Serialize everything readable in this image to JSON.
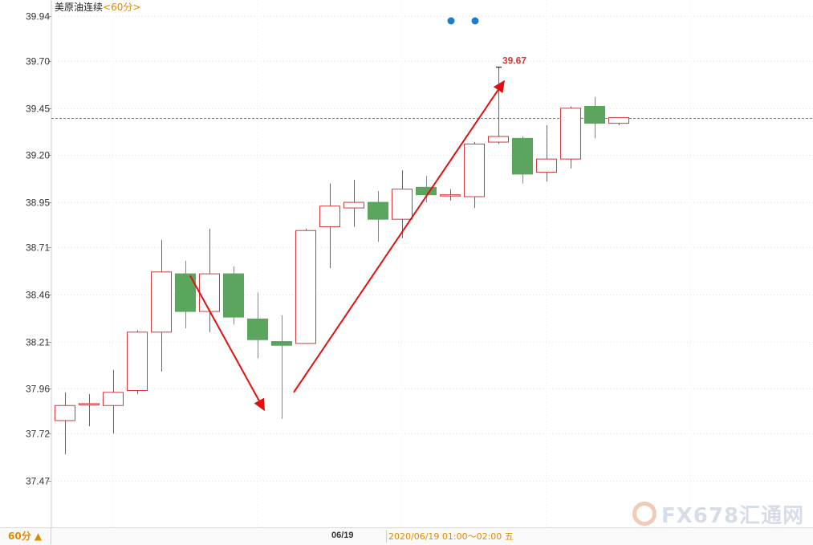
{
  "header": {
    "instrument": "美原油连续",
    "period": "<60分>"
  },
  "footer": {
    "period_button": "60分 ▲",
    "date": "06/19",
    "time_range": "2020/06/19 01:00～02:00 五"
  },
  "watermark": {
    "text": "FX678汇通网"
  },
  "colors": {
    "up": "#cf3b3b",
    "down": "#5ba55e",
    "reference_line": "#3a8fb3",
    "annotation_arrow": "#e01010",
    "marker_dot": "#1c7fc4"
  },
  "chart_data": {
    "type": "candlestick",
    "title": "美原油连续",
    "y_ticks": [
      "39.94",
      "39.70",
      "39.45",
      "39.20",
      "38.95",
      "38.71",
      "38.46",
      "38.21",
      "37.96",
      "37.72",
      "37.47"
    ],
    "ylim": [
      37.35,
      39.98
    ],
    "candles": [
      {
        "open": 37.79,
        "high": 37.94,
        "low": 37.61,
        "close": 37.87
      },
      {
        "open": 37.88,
        "high": 37.93,
        "low": 37.76,
        "close": 37.88
      },
      {
        "open": 37.87,
        "high": 38.06,
        "low": 37.72,
        "close": 37.94
      },
      {
        "open": 37.95,
        "high": 38.27,
        "low": 37.93,
        "close": 38.26
      },
      {
        "open": 38.26,
        "high": 38.75,
        "low": 38.05,
        "close": 38.58
      },
      {
        "open": 38.57,
        "high": 38.64,
        "low": 38.28,
        "close": 38.37
      },
      {
        "open": 38.37,
        "high": 38.81,
        "low": 38.26,
        "close": 38.57
      },
      {
        "open": 38.57,
        "high": 38.61,
        "low": 38.3,
        "close": 38.34
      },
      {
        "open": 38.33,
        "high": 38.47,
        "low": 38.12,
        "close": 38.22
      },
      {
        "open": 38.21,
        "high": 38.35,
        "low": 37.8,
        "close": 38.19
      },
      {
        "open": 38.2,
        "high": 38.81,
        "low": 38.2,
        "close": 38.8
      },
      {
        "open": 38.82,
        "high": 39.05,
        "low": 38.6,
        "close": 38.93
      },
      {
        "open": 38.92,
        "high": 39.07,
        "low": 38.82,
        "close": 38.95
      },
      {
        "open": 38.95,
        "high": 39.01,
        "low": 38.74,
        "close": 38.86
      },
      {
        "open": 38.86,
        "high": 39.12,
        "low": 38.76,
        "close": 39.02
      },
      {
        "open": 39.03,
        "high": 39.09,
        "low": 38.95,
        "close": 38.99
      },
      {
        "open": 38.99,
        "high": 39.02,
        "low": 38.96,
        "close": 38.99
      },
      {
        "open": 38.98,
        "high": 39.27,
        "low": 38.92,
        "close": 39.26
      },
      {
        "open": 39.27,
        "high": 39.67,
        "low": 39.26,
        "close": 39.3
      },
      {
        "open": 39.29,
        "high": 39.3,
        "low": 39.05,
        "close": 39.1
      },
      {
        "open": 39.11,
        "high": 39.36,
        "low": 39.06,
        "close": 39.18
      },
      {
        "open": 39.18,
        "high": 39.46,
        "low": 39.13,
        "close": 39.45
      },
      {
        "open": 39.46,
        "high": 39.51,
        "low": 39.29,
        "close": 39.37
      },
      {
        "open": 39.37,
        "high": 39.4,
        "low": 39.36,
        "close": 39.4
      }
    ],
    "reference_line": 39.4,
    "high_label": {
      "text": "39.67",
      "candle_index": 18,
      "value": 39.67
    },
    "marker_dots": [
      16,
      17
    ],
    "grid": true
  }
}
